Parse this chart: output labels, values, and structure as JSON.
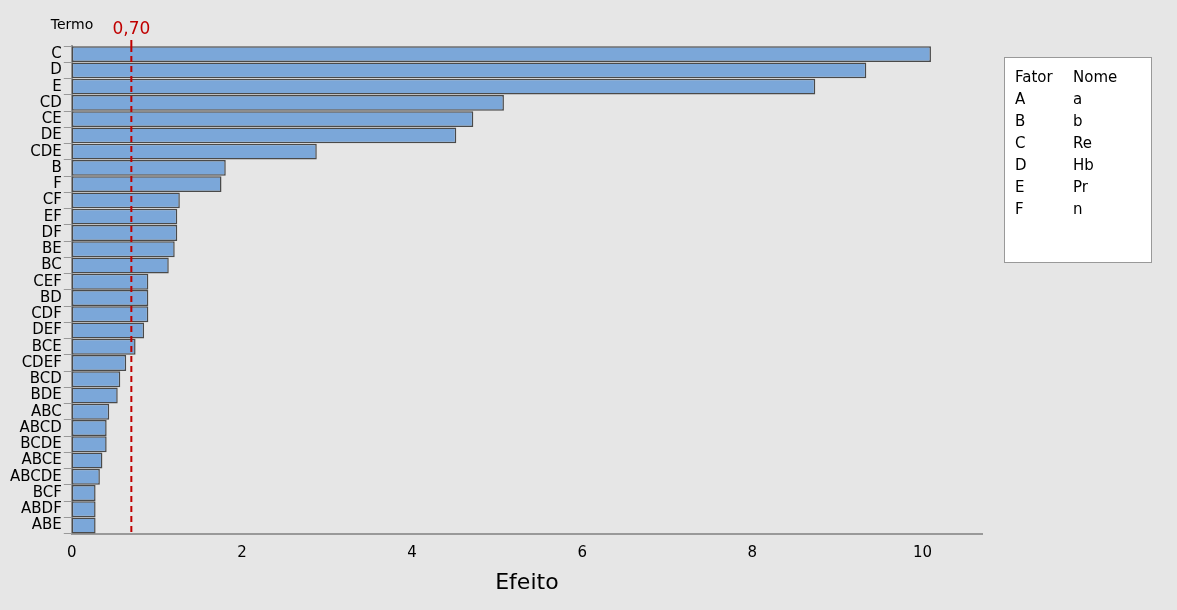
{
  "chart_data": [
    {
      "type": "bar",
      "orientation": "horizontal",
      "xlabel": "Efeito",
      "ylabel": "Termo",
      "categories": [
        "C",
        "D",
        "E",
        "CD",
        "CE",
        "DE",
        "CDE",
        "B",
        "F",
        "CF",
        "EF",
        "DF",
        "BE",
        "BC",
        "CEF",
        "BD",
        "CDF",
        "DEF",
        "BCE",
        "CDEF",
        "BCD",
        "BDE",
        "ABC",
        "ABCD",
        "BCDE",
        "ABCE",
        "ABCDE",
        "BCF",
        "ABDF",
        "ABE"
      ],
      "values": [
        10.1,
        9.34,
        8.74,
        5.08,
        4.72,
        4.52,
        2.88,
        1.81,
        1.76,
        1.27,
        1.24,
        1.24,
        1.21,
        1.14,
        0.9,
        0.9,
        0.9,
        0.85,
        0.75,
        0.64,
        0.57,
        0.54,
        0.44,
        0.41,
        0.41,
        0.36,
        0.33,
        0.28,
        0.28,
        0.28
      ],
      "color": "#7ba7d9",
      "xlim": [
        0,
        10.7
      ],
      "xticks": [
        0,
        2,
        4,
        6,
        8,
        10
      ],
      "ref_lines": [
        {
          "axis": "x",
          "value": 0.7,
          "label": "0,70",
          "color": "#c00000",
          "line_style": "dashed"
        }
      ],
      "grid": false,
      "legend": false
    },
    {
      "type": "other",
      "annotations": [
        "Fator",
        "Nome",
        "A",
        "a",
        "B",
        "b",
        "C",
        "Re",
        "D",
        "Hb",
        "E",
        "Pr",
        "F",
        "n"
      ]
    }
  ]
}
